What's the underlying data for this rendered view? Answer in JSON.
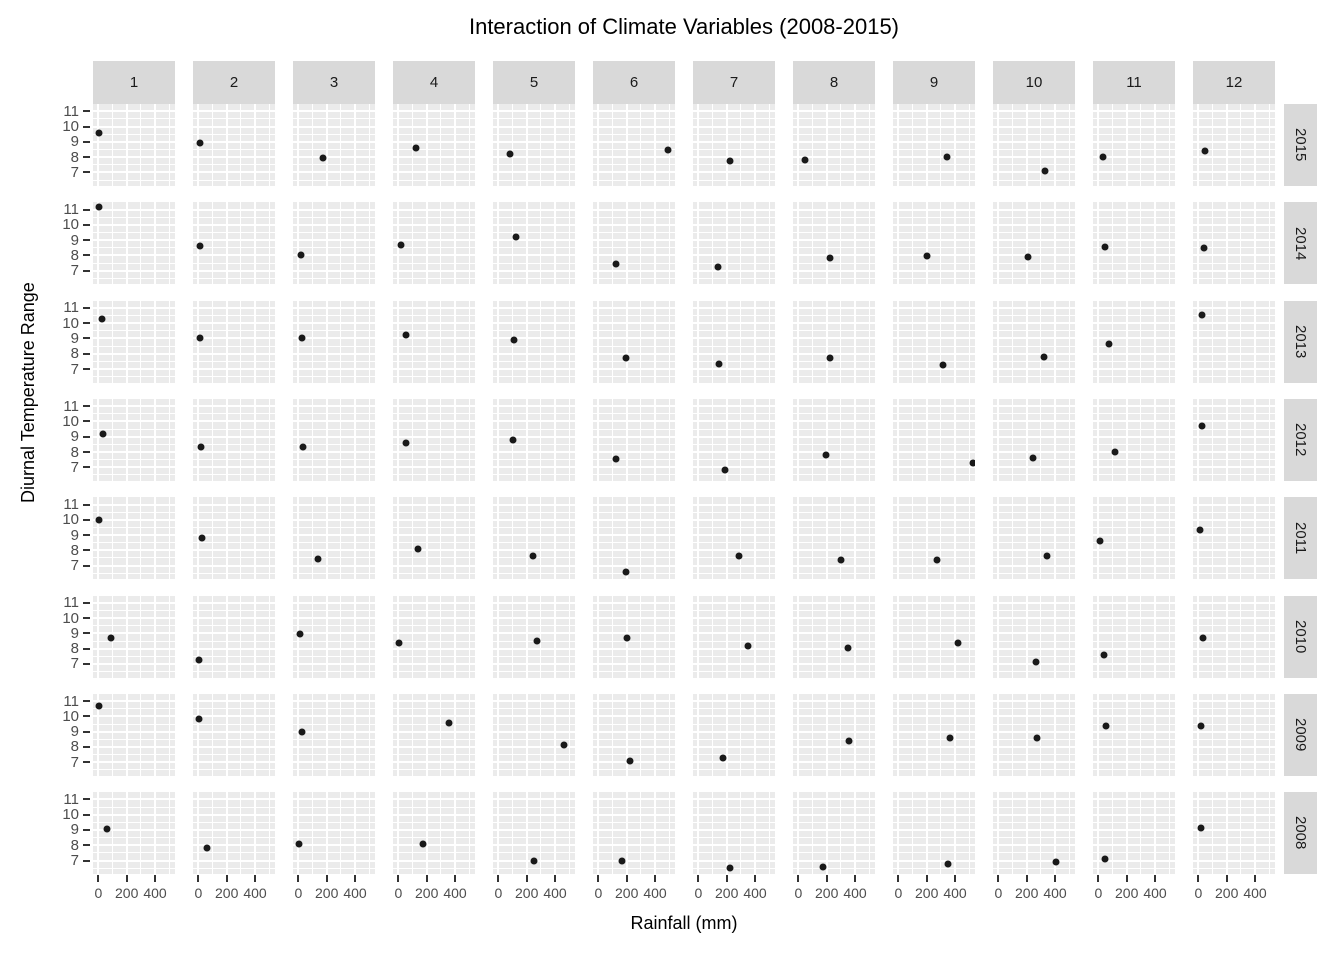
{
  "title": "Interaction of Climate Variables (2008-2015)",
  "x_axis": {
    "title": "Rainfall (mm)",
    "tick_labels": [
      "0",
      "200",
      "400"
    ],
    "tick_values": [
      0,
      200,
      400
    ],
    "minor_values": [
      100,
      300,
      500
    ],
    "domain": [
      -38,
      541
    ]
  },
  "y_axis": {
    "title": "Diurnal Temperature Range",
    "tick_labels": [
      "11",
      "10",
      "9",
      "8",
      "7"
    ],
    "tick_values": [
      11,
      10,
      9,
      8,
      7
    ],
    "minor_values": [
      6.5,
      7.5,
      8.5,
      9.5,
      10.5
    ],
    "domain": [
      6.11,
      11.48
    ]
  },
  "facets": {
    "column_labels": [
      "1",
      "2",
      "3",
      "4",
      "5",
      "6",
      "7",
      "8",
      "9",
      "10",
      "11",
      "12"
    ],
    "row_labels": [
      "2015",
      "2014",
      "2013",
      "2012",
      "2011",
      "2010",
      "2009",
      "2008"
    ]
  },
  "chart_data": {
    "type": "scatter",
    "facet_grid": "month (columns) by year (rows)",
    "x_variable": "rainfall_mm",
    "y_variable": "diurnal_temperature_range",
    "title": "Interaction of Climate Variables (2008-2015)",
    "xlabel": "Rainfall (mm)",
    "ylabel": "Diurnal Temperature Range",
    "xlim": [
      -38,
      541
    ],
    "ylim": [
      6.11,
      11.48
    ],
    "grid": "on",
    "legend": "none",
    "months": [
      1,
      2,
      3,
      4,
      5,
      6,
      7,
      8,
      9,
      10,
      11,
      12
    ],
    "rows": [
      {
        "year": "2015",
        "rainfall": [
          5,
          10,
          175,
          125,
          85,
          490,
          225,
          50,
          345,
          330,
          35,
          50
        ],
        "dtr": [
          9.55,
          8.95,
          7.95,
          8.6,
          8.2,
          8.5,
          7.75,
          7.8,
          8.0,
          7.1,
          8.0,
          8.4
        ]
      },
      {
        "year": "2014",
        "rainfall": [
          5,
          8,
          15,
          18,
          125,
          125,
          135,
          220,
          205,
          210,
          46,
          40
        ],
        "dtr": [
          11.15,
          8.6,
          8.05,
          8.7,
          9.2,
          7.45,
          7.25,
          7.8,
          7.95,
          7.9,
          8.55,
          8.5
        ]
      },
      {
        "year": "2013",
        "rainfall": [
          25,
          8,
          28,
          55,
          110,
          195,
          145,
          225,
          313,
          320,
          75,
          28
        ],
        "dtr": [
          10.3,
          9.0,
          9.05,
          9.25,
          8.9,
          7.7,
          7.3,
          7.7,
          7.25,
          7.8,
          8.65,
          10.55
        ]
      },
      {
        "year": "2012",
        "rainfall": [
          35,
          19,
          30,
          55,
          105,
          125,
          185,
          198,
          530,
          245,
          120,
          26
        ],
        "dtr": [
          9.2,
          8.3,
          8.3,
          8.6,
          8.8,
          7.55,
          6.8,
          7.8,
          7.25,
          7.6,
          8.0,
          9.7
        ]
      },
      {
        "year": "2011",
        "rainfall": [
          2,
          26,
          136,
          135,
          245,
          195,
          290,
          298,
          275,
          345,
          14,
          14
        ],
        "dtr": [
          10.0,
          8.8,
          7.4,
          8.1,
          7.65,
          6.6,
          7.65,
          7.35,
          7.35,
          7.65,
          8.6,
          9.3
        ]
      },
      {
        "year": "2010",
        "rainfall": [
          90,
          3,
          9,
          5,
          275,
          205,
          350,
          350,
          420,
          265,
          37,
          33
        ],
        "dtr": [
          8.7,
          7.25,
          8.95,
          8.4,
          8.5,
          8.7,
          8.2,
          8.05,
          8.35,
          7.15,
          7.6,
          8.7
        ]
      },
      {
        "year": "2009",
        "rainfall": [
          2,
          3,
          26,
          355,
          465,
          220,
          175,
          360,
          363,
          275,
          55,
          21
        ],
        "dtr": [
          10.7,
          9.8,
          8.95,
          9.6,
          8.1,
          7.1,
          7.3,
          8.4,
          8.6,
          8.6,
          9.35,
          9.35
        ]
      },
      {
        "year": "2008",
        "rainfall": [
          60,
          60,
          3,
          175,
          250,
          168,
          220,
          175,
          350,
          405,
          50,
          21
        ],
        "dtr": [
          9.05,
          7.85,
          8.1,
          8.1,
          7.0,
          6.95,
          6.5,
          6.55,
          6.75,
          6.9,
          7.1,
          9.1
        ]
      }
    ]
  }
}
